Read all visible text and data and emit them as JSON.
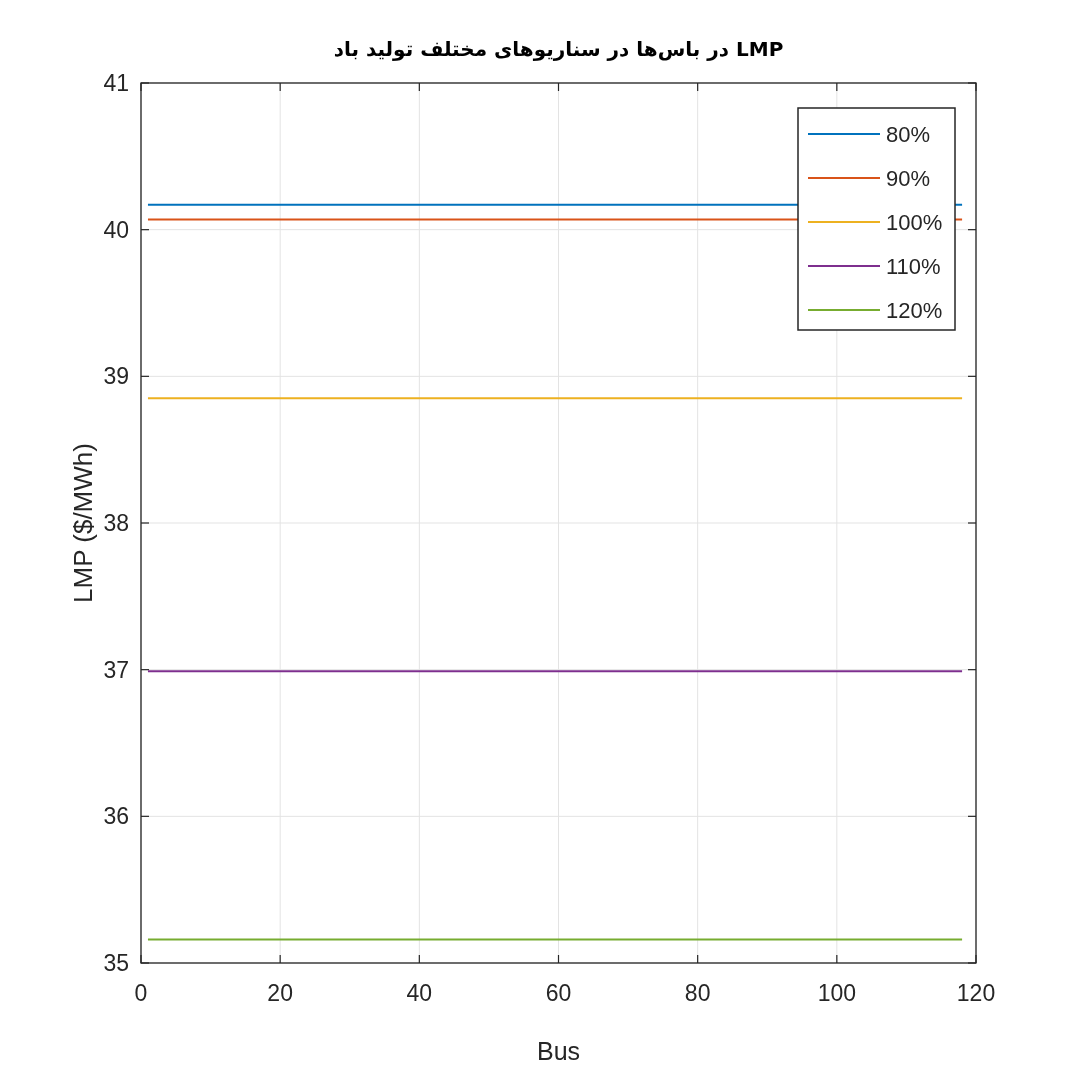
{
  "chart_data": {
    "type": "line",
    "title": "LMP در باس‌ها در سناریوهای مختلف تولید باد",
    "xlabel": "Bus",
    "ylabel": "LMP  ($/MWh)",
    "x": [
      1,
      118
    ],
    "series": [
      {
        "name": "80%",
        "color": "#0072bd",
        "values": [
          40.17,
          40.17
        ]
      },
      {
        "name": "90%",
        "color": "#d95319",
        "values": [
          40.07,
          40.07
        ]
      },
      {
        "name": "100%",
        "color": "#edb120",
        "values": [
          38.85,
          38.85
        ]
      },
      {
        "name": "110%",
        "color": "#7e2f8e",
        "values": [
          36.99,
          36.99
        ]
      },
      {
        "name": "120%",
        "color": "#77ac30",
        "values": [
          35.16,
          35.16
        ]
      }
    ],
    "xlim": [
      0,
      120
    ],
    "ylim": [
      35,
      41
    ],
    "xticks": [
      0,
      20,
      40,
      60,
      80,
      100,
      120
    ],
    "yticks": [
      35,
      36,
      37,
      38,
      39,
      40,
      41
    ],
    "grid": true,
    "legend": "top right",
    "line_style": "solid"
  }
}
